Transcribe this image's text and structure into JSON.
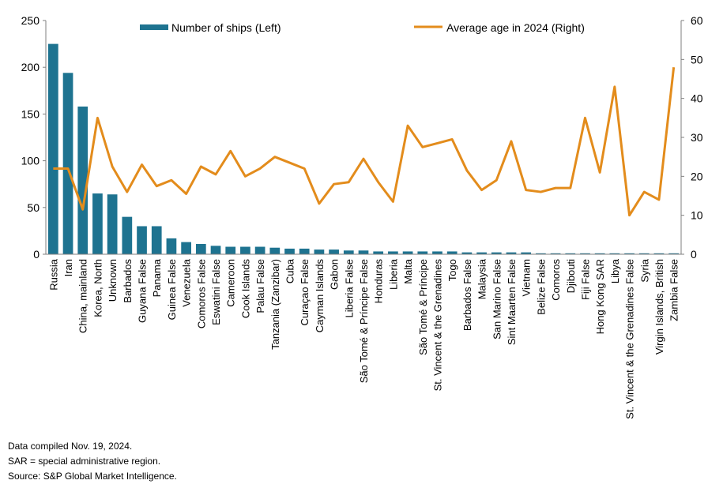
{
  "chart_data": {
    "type": "bar+line",
    "categories": [
      "Russia",
      "Iran",
      "China, mainland",
      "Korea, North",
      "Unknown",
      "Barbados",
      "Guyana False",
      "Panama",
      "Guinea False",
      "Venezuela",
      "Comoros False",
      "Eswatini False",
      "Cameroon",
      "Cook Islands",
      "Palau False",
      "Tanzania (Zanzibar)",
      "Cuba",
      "Curaçao False",
      "Cayman Islands",
      "Gabon",
      "Liberia False",
      "São Tomé & Príncipe False",
      "Honduras",
      "Liberia",
      "Malta",
      "São Tomé & Príncipe",
      "St. Vincent & the Grenadines",
      "Togo",
      "Barbados False",
      "Malaysia",
      "San Marino False",
      "Sint Maarten False",
      "Vietnam",
      "Belize False",
      "Comoros",
      "Djibouti",
      "Fiji False",
      "Hong Kong SAR",
      "Libya",
      "St. Vincent & the Grenadines False",
      "Syria",
      "Virgin Islands, British",
      "Zambia False"
    ],
    "series": [
      {
        "name": "Number of ships (Left)",
        "type": "bar",
        "axis": "left",
        "color": "#1e7390",
        "values": [
          225,
          194,
          158,
          65,
          64,
          40,
          30,
          30,
          17,
          13,
          11,
          9,
          8,
          8,
          8,
          7,
          6,
          6,
          5,
          5,
          4,
          4,
          3,
          3,
          3,
          3,
          3,
          3,
          2,
          2,
          2,
          2,
          2,
          1,
          1,
          1,
          1,
          1,
          1,
          1,
          1,
          1,
          1
        ]
      },
      {
        "name": "Average age in 2024 (Right)",
        "type": "line",
        "axis": "right",
        "color": "#e38c1c",
        "values": [
          22,
          22,
          11.5,
          35,
          22.5,
          16,
          23,
          17.5,
          19,
          15.5,
          22.5,
          20.5,
          26.5,
          20,
          22,
          25,
          23.5,
          22,
          13,
          18,
          18.5,
          24.5,
          18.5,
          13.5,
          33,
          27.5,
          28.5,
          29.5,
          21.5,
          16.5,
          19,
          29,
          16.5,
          16,
          17,
          17,
          35,
          21,
          43,
          10,
          16,
          14,
          48
        ]
      }
    ],
    "yleft": {
      "min": 0,
      "max": 250,
      "ticks": [
        0,
        50,
        100,
        150,
        200,
        250
      ]
    },
    "yright": {
      "min": 0,
      "max": 60,
      "ticks": [
        0,
        10,
        20,
        30,
        40,
        50,
        60
      ]
    },
    "legend_position": "top",
    "grid": false
  },
  "notes": [
    "Data compiled Nov. 19, 2024.",
    "SAR = special administrative region.",
    "Source: S&P Global Market Intelligence."
  ]
}
